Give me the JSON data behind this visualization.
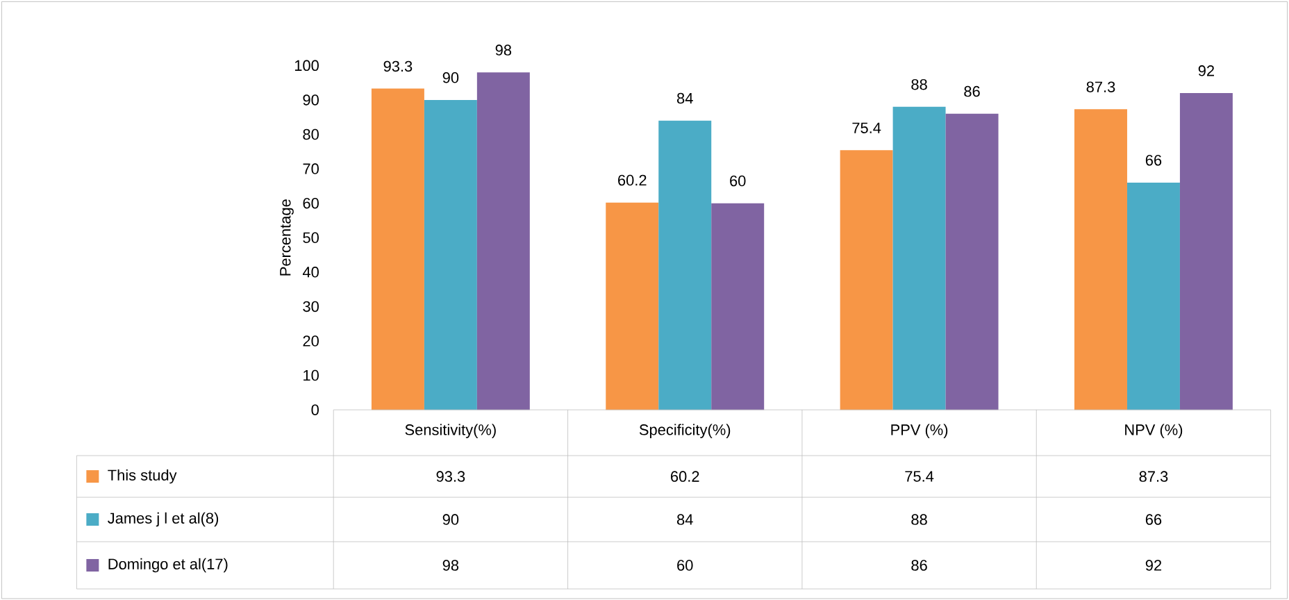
{
  "chart_data": {
    "type": "bar",
    "ylabel": "Percentage",
    "categories": [
      "Sensitivity(%)",
      "Specificity(%)",
      "PPV (%)",
      "NPV (%)"
    ],
    "series": [
      {
        "name": "This study",
        "color": "#f79646",
        "values": [
          93.3,
          60.2,
          75.4,
          87.3
        ],
        "value_labels": [
          "93.3",
          "60.2",
          "75.4",
          "87.3"
        ]
      },
      {
        "name": "James j l et al(8)",
        "color": "#4bacc6",
        "values": [
          90,
          84,
          88,
          66
        ],
        "value_labels": [
          "90",
          "84",
          "88",
          "66"
        ]
      },
      {
        "name": "Domingo et al(17)",
        "color": "#8064a2",
        "values": [
          98,
          60,
          86,
          92
        ],
        "value_labels": [
          "98",
          "60",
          "86",
          "92"
        ]
      }
    ],
    "ylim": [
      0,
      100
    ],
    "yticks": [
      0,
      10,
      20,
      30,
      40,
      50,
      60,
      70,
      80,
      90,
      100
    ],
    "legend": "bottom"
  }
}
